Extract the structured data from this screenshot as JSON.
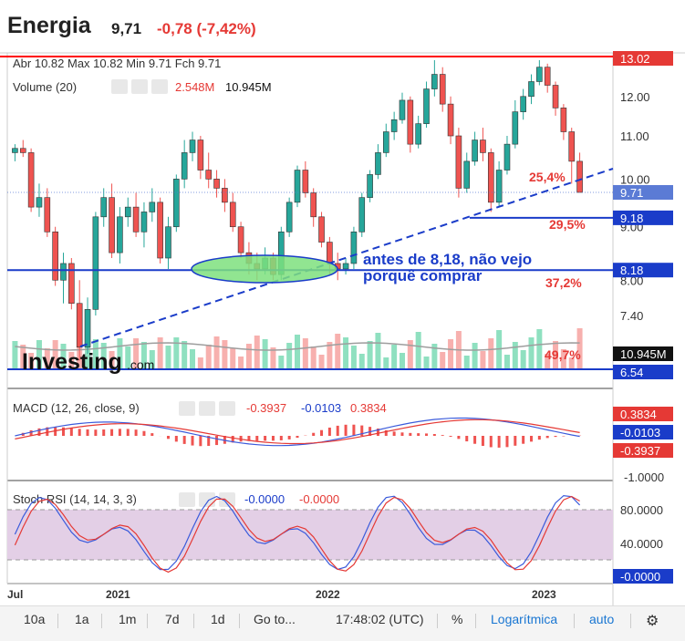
{
  "header": {
    "title": "Energia",
    "price": "9,71",
    "change": "-0,78 (-7,42%)"
  },
  "ohlc": {
    "text": "Abr 10.82  Max 10.82  Min 9.71  Fch 9.71"
  },
  "volume_legend": {
    "label": "Volume (20)",
    "v1": "2.548M",
    "v2": "10.945M"
  },
  "macd_legend": {
    "label": "MACD (12, 26, close, 9)",
    "v1": "-0.3937",
    "v2": "-0.0103",
    "v3": "0.3834"
  },
  "stoch_legend": {
    "label": "Stoch RSI (14, 14, 3, 3)",
    "v1": "-0.0000",
    "v2": "-0.0000"
  },
  "annotations": {
    "pct1": "25,4%",
    "pct2": "29,5%",
    "pct3": "37,2%",
    "pct4": "49,7%",
    "text1": "antes de 8,18, não vejo",
    "text2": "porquê comprar"
  },
  "watermark": {
    "brand": "Investing",
    "suffix": ".com"
  },
  "colors": {
    "up": "#26a69a",
    "down": "#ef5350",
    "hline": "#1a3cc9",
    "redline": "#ff0000",
    "ellipse": "#7ee07e"
  },
  "toolbar": {
    "b1": "10a",
    "b2": "1a",
    "b3": "1m",
    "b4": "7d",
    "b5": "1d",
    "goto": "Go to...",
    "time": "17:48:02 (UTC)",
    "pct": "%",
    "log": "Logarítmica",
    "auto": "auto"
  },
  "price_badges": {
    "b1302": "13.02",
    "b971": "9.71",
    "b918": "9.18",
    "b818": "8.18",
    "b654": "6.54",
    "vol": "10.945M",
    "partial": "2.548M"
  },
  "macd_badges": {
    "a": "0.3834",
    "b": "-0.0103",
    "c": "-0.3937"
  },
  "stoch_badge": "-0.0000",
  "chart_data": {
    "type": "candlestick",
    "price_axis": {
      "ticks": [
        12.0,
        11.0,
        10.0,
        9.0,
        8.0,
        7.4
      ],
      "tick_labels": [
        "12.00",
        "11.00",
        "10.00",
        "9.00",
        "8.00",
        "7.40"
      ],
      "scale": "log"
    },
    "x_axis": {
      "labels": [
        "Jul",
        "2021",
        "2022",
        "2023"
      ]
    },
    "macd_axis": {
      "ticks": [
        "-1.0000"
      ]
    },
    "stoch_axis": {
      "ticks": [
        "80.0000",
        "40.0000"
      ]
    },
    "levels": {
      "max": 13.02,
      "last": 9.71,
      "support1": 9.18,
      "support2": 8.18,
      "support3": 6.54
    },
    "ohlc": [
      [
        10.6,
        10.8,
        10.4,
        10.7
      ],
      [
        10.7,
        10.9,
        10.5,
        10.6
      ],
      [
        10.6,
        10.7,
        9.3,
        9.4
      ],
      [
        9.4,
        9.9,
        9.2,
        9.6
      ],
      [
        9.6,
        9.8,
        8.8,
        8.9
      ],
      [
        8.9,
        9.0,
        7.9,
        8.0
      ],
      [
        8.0,
        8.5,
        7.6,
        8.3
      ],
      [
        8.3,
        8.4,
        7.5,
        7.6
      ],
      [
        7.6,
        8.0,
        6.7,
        6.9
      ],
      [
        6.9,
        7.7,
        6.8,
        7.5
      ],
      [
        7.5,
        9.3,
        7.4,
        9.2
      ],
      [
        9.2,
        9.8,
        9.0,
        9.6
      ],
      [
        9.6,
        9.9,
        8.4,
        8.5
      ],
      [
        8.5,
        9.4,
        8.3,
        9.2
      ],
      [
        9.2,
        9.6,
        9.0,
        9.4
      ],
      [
        9.4,
        9.7,
        8.8,
        8.9
      ],
      [
        8.9,
        9.5,
        8.6,
        9.3
      ],
      [
        9.3,
        9.8,
        9.1,
        9.5
      ],
      [
        9.5,
        9.6,
        8.3,
        8.4
      ],
      [
        8.4,
        9.2,
        8.2,
        9.0
      ],
      [
        9.0,
        10.1,
        8.9,
        10.0
      ],
      [
        10.0,
        10.9,
        9.8,
        10.6
      ],
      [
        10.6,
        11.1,
        10.4,
        10.9
      ],
      [
        10.9,
        11.0,
        10.0,
        10.2
      ],
      [
        10.2,
        10.6,
        9.8,
        10.0
      ],
      [
        10.0,
        10.2,
        9.6,
        9.8
      ],
      [
        9.8,
        10.0,
        9.3,
        9.5
      ],
      [
        9.5,
        9.7,
        8.9,
        9.0
      ],
      [
        9.0,
        9.1,
        8.4,
        8.5
      ],
      [
        8.5,
        8.7,
        8.1,
        8.3
      ],
      [
        8.3,
        8.5,
        8.0,
        8.2
      ],
      [
        8.2,
        8.6,
        8.1,
        8.4
      ],
      [
        8.4,
        8.5,
        8.0,
        8.1
      ],
      [
        8.1,
        9.0,
        8.0,
        8.9
      ],
      [
        8.9,
        9.6,
        8.8,
        9.5
      ],
      [
        9.5,
        10.3,
        9.4,
        10.2
      ],
      [
        10.2,
        10.4,
        9.6,
        9.7
      ],
      [
        9.7,
        9.8,
        9.0,
        9.2
      ],
      [
        9.2,
        9.3,
        8.6,
        8.7
      ],
      [
        8.7,
        8.8,
        8.1,
        8.3
      ],
      [
        8.3,
        8.5,
        8.0,
        8.2
      ],
      [
        8.2,
        8.4,
        8.1,
        8.3
      ],
      [
        8.3,
        9.0,
        8.2,
        8.9
      ],
      [
        8.9,
        9.7,
        8.8,
        9.6
      ],
      [
        9.6,
        10.2,
        9.5,
        10.1
      ],
      [
        10.1,
        10.8,
        10.0,
        10.6
      ],
      [
        10.6,
        11.3,
        10.5,
        11.1
      ],
      [
        11.1,
        11.6,
        10.9,
        11.4
      ],
      [
        11.4,
        12.1,
        11.3,
        11.9
      ],
      [
        11.9,
        12.0,
        10.6,
        10.8
      ],
      [
        10.8,
        11.5,
        10.7,
        11.3
      ],
      [
        11.3,
        12.4,
        11.2,
        12.2
      ],
      [
        12.2,
        13.0,
        12.0,
        12.6
      ],
      [
        12.6,
        12.8,
        11.6,
        11.8
      ],
      [
        11.8,
        12.0,
        10.8,
        11.0
      ],
      [
        11.0,
        11.2,
        9.6,
        9.8
      ],
      [
        9.8,
        10.6,
        9.7,
        10.4
      ],
      [
        10.4,
        11.1,
        10.3,
        10.9
      ],
      [
        10.9,
        11.2,
        10.4,
        10.6
      ],
      [
        10.6,
        10.7,
        9.3,
        9.5
      ],
      [
        9.5,
        10.4,
        9.4,
        10.2
      ],
      [
        10.2,
        11.0,
        10.1,
        10.8
      ],
      [
        10.8,
        11.9,
        10.7,
        11.6
      ],
      [
        11.6,
        12.2,
        11.4,
        12.0
      ],
      [
        12.0,
        12.6,
        11.8,
        12.4
      ],
      [
        12.4,
        13.0,
        12.3,
        12.8
      ],
      [
        12.8,
        12.9,
        12.1,
        12.3
      ],
      [
        12.3,
        12.4,
        11.5,
        11.7
      ],
      [
        11.7,
        11.8,
        10.9,
        11.1
      ],
      [
        11.1,
        11.2,
        9.9,
        10.4
      ],
      [
        10.4,
        10.6,
        9.71,
        9.71
      ]
    ]
  }
}
